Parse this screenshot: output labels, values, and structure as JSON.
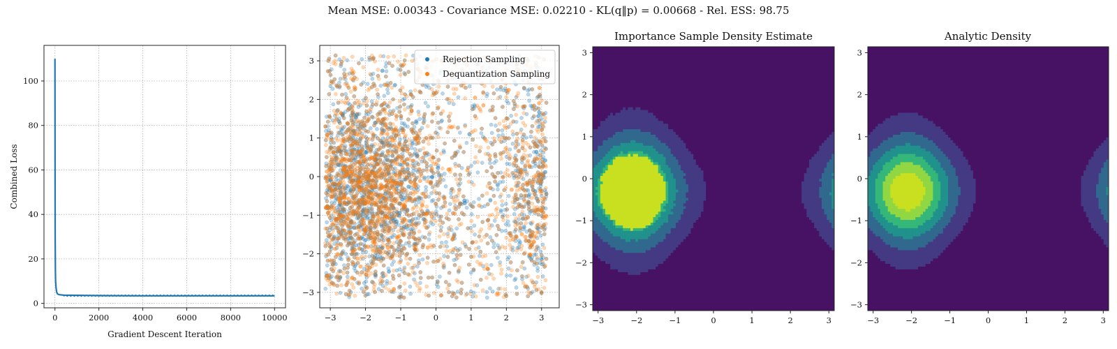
{
  "figure": {
    "suptitle": "Mean MSE: 0.00343 - Covariance MSE: 0.02210 - KL(q‖p) = 0.00668 - Rel. ESS: 98.75"
  },
  "colors": {
    "blue": "#1f77b4",
    "orange": "#ff7f0e",
    "grid": "#b0b0b0",
    "viridis": [
      "#471264",
      "#443a83",
      "#31688e",
      "#21918c",
      "#35b779",
      "#90d743",
      "#c8e020"
    ]
  },
  "chart_data": [
    {
      "type": "line",
      "xlabel": "Gradient Descent Iteration",
      "ylabel": "Combined Loss",
      "xlim": [
        -500,
        10500
      ],
      "ylim": [
        -2,
        116
      ],
      "xticks": [
        0,
        2000,
        4000,
        6000,
        8000,
        10000
      ],
      "yticks": [
        0,
        20,
        40,
        60,
        80,
        100
      ],
      "grid": true,
      "series": [
        {
          "x": [
            0,
            5,
            10,
            20,
            30,
            50,
            80,
            120,
            200,
            400,
            1000,
            2000,
            4000,
            6000,
            8000,
            10000
          ],
          "y": [
            110,
            60,
            30,
            15,
            10,
            7,
            5,
            4.2,
            3.9,
            3.7,
            3.6,
            3.5,
            3.4,
            3.4,
            3.4,
            3.4
          ]
        }
      ]
    },
    {
      "type": "scatter",
      "xlim": [
        -3.3,
        3.5
      ],
      "ylim": [
        -3.4,
        3.4
      ],
      "xticks": [
        -3,
        -2,
        -1,
        0,
        1,
        2,
        3
      ],
      "yticks": [
        -3,
        -2,
        -1,
        0,
        1,
        2,
        3
      ],
      "grid": true,
      "legend_position": "top-right",
      "series": [
        {
          "name": "Rejection Sampling",
          "color": "#1f77b4",
          "alpha": 0.3,
          "n_points": 2500
        },
        {
          "name": "Dequantization Sampling",
          "color": "#ff7f0e",
          "alpha": 0.3,
          "n_points": 2500
        }
      ]
    },
    {
      "type": "heatmap",
      "title": "Importance Sample Density Estimate",
      "xlim": [
        -3.14,
        3.14
      ],
      "ylim": [
        -3.14,
        3.14
      ],
      "xticks": [
        -3,
        -2,
        -1,
        0,
        1,
        2,
        3
      ],
      "yticks": [
        -3,
        -2,
        -1,
        0,
        1,
        2,
        3
      ],
      "levels": 7,
      "mode_center": [
        -2.1,
        -0.3
      ]
    },
    {
      "type": "heatmap",
      "title": "Analytic Density",
      "xlim": [
        -3.14,
        3.14
      ],
      "ylim": [
        -3.14,
        3.14
      ],
      "xticks": [
        -3,
        -2,
        -1,
        0,
        1,
        2,
        3
      ],
      "yticks": [
        -3,
        -2,
        -1,
        0,
        1,
        2,
        3
      ],
      "levels": 7,
      "mode_center": [
        -2.1,
        -0.3
      ]
    }
  ]
}
